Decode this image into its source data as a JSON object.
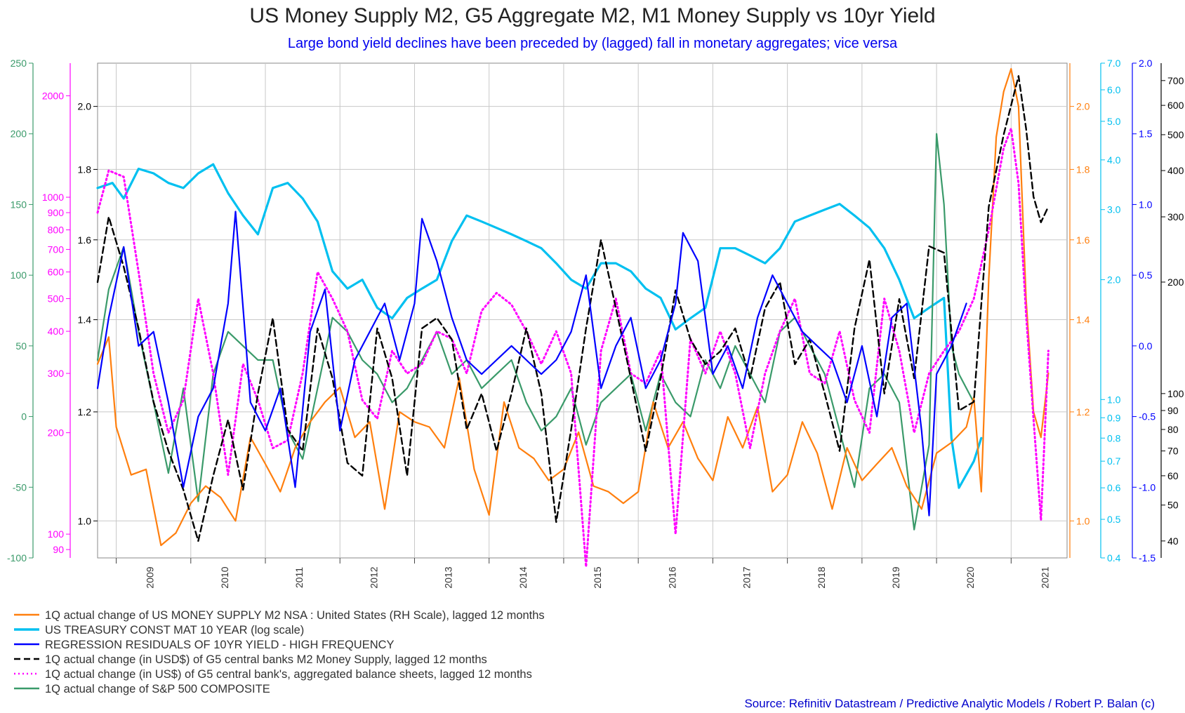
{
  "chart_data": {
    "type": "line",
    "title": "US Money Supply M2, G5 Aggregate M2, M1 Money Supply vs 10yr Yield",
    "subtitle": "Large bond yield declines have been preceded by (lagged) fall in monetary aggregates; vice versa",
    "source": "Source:  Refinitiv Datastream  / Predictive Analytic Models /  Robert P. Balan (c)",
    "x_years": [
      "2009",
      "2010",
      "2011",
      "2012",
      "2013",
      "2014",
      "2015",
      "2016",
      "2017",
      "2018",
      "2019",
      "2020",
      "2021"
    ],
    "x_range": [
      2008.75,
      2021.75
    ],
    "axes": {
      "green": {
        "color": "#3a9a6a",
        "ticks": [
          "250",
          "200",
          "150",
          "100",
          "50",
          "0",
          "-50",
          "-100"
        ],
        "range": [
          -100,
          250
        ]
      },
      "magenta": {
        "color": "#ff00ff",
        "scale": "log",
        "ticks": [
          "2000",
          "1000",
          "900",
          "800",
          "700",
          "600",
          "500",
          "400",
          "300",
          "200",
          "100",
          "90"
        ],
        "range": [
          85,
          2500
        ]
      },
      "black_left": {
        "color": "#000000",
        "scale": "log",
        "ticks": [
          "2.0",
          "1.8",
          "1.6",
          "1.4",
          "1.2",
          "1.0"
        ],
        "range": [
          0.94,
          2.15
        ]
      },
      "orange": {
        "color": "#ff7f0e",
        "scale": "log",
        "ticks": [
          "2.0",
          "1.8",
          "1.6",
          "1.4",
          "1.2",
          "1.0"
        ],
        "range": [
          0.94,
          2.15
        ]
      },
      "cyan": {
        "color": "#00c0f0",
        "scale": "log",
        "ticks": [
          "7.0",
          "6.0",
          "5.0",
          "4.0",
          "3.0",
          "2.0",
          "1.0",
          "0.9",
          "0.8",
          "0.7",
          "0.6",
          "0.5",
          "0.4"
        ],
        "range": [
          0.4,
          7.0
        ]
      },
      "blue": {
        "color": "#0000ff",
        "ticks": [
          "2.0",
          "1.5",
          "1.0",
          "0.5",
          "0.0",
          "-0.5",
          "-1.0",
          "-1.5"
        ],
        "range": [
          -1.5,
          2.0
        ]
      },
      "black_right": {
        "color": "#000000",
        "scale": "log",
        "ticks": [
          "700",
          "600",
          "500",
          "400",
          "300",
          "200",
          "100",
          "90",
          "80",
          "70",
          "60",
          "50",
          "40"
        ],
        "range": [
          36,
          780
        ]
      }
    },
    "series": [
      {
        "name": "1Q actual change of US MONEY SUPPLY M2 NSA : United States (RH Scale), lagged 12 months",
        "color": "#ff7f0e",
        "dash": "solid",
        "axis": "orange",
        "x": [
          2008.75,
          2008.9,
          2009.0,
          2009.2,
          2009.4,
          2009.6,
          2009.8,
          2010.0,
          2010.2,
          2010.4,
          2010.6,
          2010.8,
          2011.0,
          2011.2,
          2011.4,
          2011.6,
          2011.8,
          2012.0,
          2012.2,
          2012.4,
          2012.6,
          2012.8,
          2013.0,
          2013.2,
          2013.4,
          2013.6,
          2013.8,
          2014.0,
          2014.2,
          2014.4,
          2014.6,
          2014.8,
          2015.0,
          2015.2,
          2015.4,
          2015.6,
          2015.8,
          2016.0,
          2016.2,
          2016.4,
          2016.6,
          2016.8,
          2017.0,
          2017.2,
          2017.4,
          2017.6,
          2017.8,
          2018.0,
          2018.2,
          2018.4,
          2018.6,
          2018.8,
          2019.0,
          2019.2,
          2019.4,
          2019.6,
          2019.8,
          2020.0,
          2020.2,
          2020.4,
          2020.5,
          2020.6,
          2020.7,
          2020.8,
          2020.9,
          2021.0,
          2021.1,
          2021.2,
          2021.3,
          2021.4,
          2021.5
        ],
        "values": [
          1.3,
          1.36,
          1.17,
          1.08,
          1.09,
          0.96,
          0.98,
          1.03,
          1.06,
          1.04,
          1.0,
          1.15,
          1.1,
          1.05,
          1.13,
          1.18,
          1.22,
          1.25,
          1.15,
          1.18,
          1.02,
          1.2,
          1.18,
          1.17,
          1.13,
          1.27,
          1.09,
          1.01,
          1.22,
          1.13,
          1.11,
          1.07,
          1.09,
          1.16,
          1.06,
          1.05,
          1.03,
          1.05,
          1.22,
          1.13,
          1.18,
          1.11,
          1.07,
          1.19,
          1.13,
          1.21,
          1.05,
          1.08,
          1.18,
          1.12,
          1.02,
          1.13,
          1.07,
          1.1,
          1.13,
          1.06,
          1.02,
          1.12,
          1.14,
          1.17,
          1.23,
          1.05,
          1.5,
          1.9,
          2.05,
          2.13,
          2.0,
          1.45,
          1.2,
          1.15,
          1.28
        ]
      },
      {
        "name": "US TREASURY CONST MAT 10 YEAR (log scale)",
        "color": "#00c0f0",
        "dash": "solid",
        "axis": "cyan",
        "x": [
          2008.75,
          2008.95,
          2009.1,
          2009.3,
          2009.5,
          2009.7,
          2009.9,
          2010.1,
          2010.3,
          2010.5,
          2010.7,
          2010.9,
          2011.1,
          2011.3,
          2011.5,
          2011.7,
          2011.9,
          2012.1,
          2012.3,
          2012.5,
          2012.7,
          2012.9,
          2013.1,
          2013.3,
          2013.5,
          2013.7,
          2013.9,
          2014.1,
          2014.3,
          2014.5,
          2014.7,
          2014.9,
          2015.1,
          2015.3,
          2015.5,
          2015.7,
          2015.9,
          2016.1,
          2016.3,
          2016.5,
          2016.7,
          2016.9,
          2017.1,
          2017.3,
          2017.5,
          2017.7,
          2017.9,
          2018.1,
          2018.3,
          2018.5,
          2018.7,
          2018.9,
          2019.1,
          2019.3,
          2019.5,
          2019.7,
          2019.9,
          2020.1,
          2020.2,
          2020.3,
          2020.5,
          2020.6
        ],
        "values": [
          3.4,
          3.5,
          3.2,
          3.8,
          3.7,
          3.5,
          3.4,
          3.7,
          3.9,
          3.3,
          2.9,
          2.6,
          3.4,
          3.5,
          3.2,
          2.8,
          2.1,
          1.9,
          2.0,
          1.7,
          1.6,
          1.8,
          1.9,
          2.0,
          2.5,
          2.9,
          2.8,
          2.7,
          2.6,
          2.5,
          2.4,
          2.2,
          2.0,
          1.9,
          2.2,
          2.2,
          2.1,
          1.9,
          1.8,
          1.5,
          1.6,
          1.7,
          2.4,
          2.4,
          2.3,
          2.2,
          2.4,
          2.8,
          2.9,
          3.0,
          3.1,
          2.9,
          2.7,
          2.4,
          2.0,
          1.6,
          1.7,
          1.8,
          0.8,
          0.6,
          0.7,
          0.8
        ]
      },
      {
        "name": "REGRESSION RESIDUALS OF 10YR YIELD - HIGH FREQUENCY",
        "color": "#0000ff",
        "dash": "solid",
        "axis": "blue",
        "x": [
          2008.75,
          2008.9,
          2009.1,
          2009.3,
          2009.5,
          2009.7,
          2009.9,
          2010.1,
          2010.3,
          2010.5,
          2010.6,
          2010.8,
          2011.0,
          2011.2,
          2011.4,
          2011.6,
          2011.8,
          2012.0,
          2012.2,
          2012.4,
          2012.6,
          2012.8,
          2013.0,
          2013.1,
          2013.3,
          2013.5,
          2013.7,
          2013.9,
          2014.1,
          2014.3,
          2014.5,
          2014.7,
          2014.9,
          2015.1,
          2015.3,
          2015.5,
          2015.7,
          2015.9,
          2016.1,
          2016.3,
          2016.5,
          2016.6,
          2016.8,
          2017.0,
          2017.2,
          2017.4,
          2017.6,
          2017.8,
          2018.0,
          2018.2,
          2018.4,
          2018.6,
          2018.8,
          2019.0,
          2019.2,
          2019.4,
          2019.6,
          2019.8,
          2019.9,
          2020.0,
          2020.2,
          2020.4
        ],
        "values": [
          -0.3,
          0.2,
          0.7,
          0.0,
          0.1,
          -0.4,
          -1.0,
          -0.5,
          -0.3,
          0.3,
          0.95,
          -0.4,
          -0.6,
          -0.3,
          -1.0,
          0.1,
          0.4,
          -0.6,
          -0.1,
          0.1,
          0.3,
          -0.1,
          0.3,
          0.9,
          0.6,
          0.2,
          -0.1,
          -0.2,
          -0.1,
          0.0,
          -0.1,
          -0.2,
          -0.1,
          0.1,
          0.5,
          -0.3,
          0.0,
          0.2,
          -0.3,
          -0.1,
          0.3,
          0.8,
          0.6,
          -0.2,
          0.0,
          -0.3,
          0.2,
          0.5,
          0.3,
          0.1,
          0.0,
          -0.1,
          -0.4,
          0.0,
          -0.5,
          0.2,
          0.3,
          -0.6,
          -1.2,
          -0.2,
          0.0,
          0.3
        ]
      },
      {
        "name": "1Q actual change (in USD$) of G5 central banks M2 Money Supply, lagged 12 months",
        "color": "#000000",
        "dash": "dashed",
        "axis": "black_right",
        "x": [
          2008.75,
          2008.9,
          2009.1,
          2009.3,
          2009.5,
          2009.7,
          2009.9,
          2010.1,
          2010.3,
          2010.5,
          2010.7,
          2010.9,
          2011.1,
          2011.3,
          2011.5,
          2011.7,
          2011.9,
          2012.1,
          2012.3,
          2012.5,
          2012.7,
          2012.9,
          2013.1,
          2013.3,
          2013.5,
          2013.7,
          2013.9,
          2014.1,
          2014.3,
          2014.5,
          2014.7,
          2014.9,
          2015.1,
          2015.3,
          2015.5,
          2015.7,
          2015.9,
          2016.1,
          2016.3,
          2016.5,
          2016.7,
          2016.9,
          2017.1,
          2017.3,
          2017.5,
          2017.7,
          2017.9,
          2018.1,
          2018.3,
          2018.5,
          2018.7,
          2018.9,
          2019.1,
          2019.3,
          2019.5,
          2019.7,
          2019.9,
          2020.1,
          2020.3,
          2020.5,
          2020.7,
          2020.9,
          2021.0,
          2021.1,
          2021.2,
          2021.3,
          2021.4,
          2021.5
        ],
        "values": [
          200,
          300,
          220,
          150,
          95,
          70,
          55,
          40,
          60,
          85,
          55,
          100,
          160,
          80,
          70,
          150,
          110,
          65,
          60,
          150,
          110,
          60,
          150,
          160,
          140,
          80,
          100,
          70,
          100,
          150,
          100,
          45,
          80,
          150,
          260,
          170,
          110,
          70,
          110,
          190,
          140,
          120,
          130,
          150,
          110,
          170,
          200,
          120,
          140,
          100,
          70,
          150,
          230,
          100,
          180,
          110,
          250,
          240,
          90,
          95,
          320,
          500,
          600,
          720,
          520,
          340,
          290,
          320
        ]
      },
      {
        "name": "1Q actual change (in US$) of G5 central bank's, aggregated balance sheets, lagged 12 months",
        "color": "#ff00ff",
        "dash": "dotted",
        "axis": "magenta",
        "x": [
          2008.75,
          2008.9,
          2009.1,
          2009.3,
          2009.5,
          2009.7,
          2009.9,
          2010.1,
          2010.3,
          2010.5,
          2010.7,
          2010.9,
          2011.1,
          2011.3,
          2011.5,
          2011.7,
          2011.9,
          2012.1,
          2012.3,
          2012.5,
          2012.7,
          2012.9,
          2013.1,
          2013.3,
          2013.5,
          2013.7,
          2013.9,
          2014.1,
          2014.3,
          2014.5,
          2014.7,
          2014.9,
          2015.1,
          2015.3,
          2015.5,
          2015.7,
          2015.9,
          2016.1,
          2016.3,
          2016.5,
          2016.7,
          2016.9,
          2017.1,
          2017.3,
          2017.5,
          2017.7,
          2017.9,
          2018.1,
          2018.3,
          2018.5,
          2018.7,
          2018.9,
          2019.1,
          2019.3,
          2019.5,
          2019.7,
          2019.9,
          2020.1,
          2020.3,
          2020.5,
          2020.7,
          2020.9,
          2021.0,
          2021.1,
          2021.2,
          2021.3,
          2021.4,
          2021.5
        ],
        "values": [
          900,
          1200,
          1150,
          600,
          300,
          200,
          250,
          500,
          300,
          150,
          320,
          250,
          180,
          190,
          300,
          600,
          500,
          400,
          250,
          220,
          350,
          300,
          320,
          400,
          380,
          300,
          460,
          520,
          480,
          400,
          320,
          400,
          300,
          80,
          350,
          500,
          300,
          280,
          350,
          100,
          380,
          300,
          400,
          300,
          180,
          300,
          400,
          500,
          300,
          280,
          400,
          250,
          200,
          500,
          350,
          200,
          300,
          350,
          400,
          500,
          800,
          1400,
          1600,
          1100,
          450,
          220,
          110,
          350
        ]
      },
      {
        "name": "1Q actual change of S&P 500 COMPOSITE",
        "color": "#3a9a6a",
        "dash": "solid",
        "axis": "green",
        "x": [
          2008.75,
          2008.9,
          2009.1,
          2009.3,
          2009.5,
          2009.7,
          2009.9,
          2010.1,
          2010.3,
          2010.5,
          2010.7,
          2010.9,
          2011.1,
          2011.3,
          2011.5,
          2011.7,
          2011.9,
          2012.1,
          2012.3,
          2012.5,
          2012.7,
          2012.9,
          2013.1,
          2013.3,
          2013.5,
          2013.7,
          2013.9,
          2014.1,
          2014.3,
          2014.5,
          2014.7,
          2014.9,
          2015.1,
          2015.3,
          2015.5,
          2015.7,
          2015.9,
          2016.1,
          2016.3,
          2016.5,
          2016.7,
          2016.9,
          2017.1,
          2017.3,
          2017.5,
          2017.7,
          2017.9,
          2018.1,
          2018.3,
          2018.5,
          2018.7,
          2018.9,
          2019.1,
          2019.3,
          2019.5,
          2019.7,
          2019.9,
          2020.0,
          2020.1,
          2020.2,
          2020.3,
          2020.5
        ],
        "values": [
          40,
          90,
          120,
          60,
          10,
          -40,
          20,
          -60,
          30,
          60,
          50,
          40,
          40,
          -10,
          -30,
          20,
          70,
          60,
          40,
          30,
          10,
          20,
          40,
          60,
          30,
          40,
          20,
          30,
          40,
          10,
          -10,
          0,
          20,
          -20,
          10,
          20,
          30,
          -10,
          30,
          10,
          0,
          40,
          20,
          50,
          30,
          10,
          60,
          70,
          50,
          30,
          -10,
          -50,
          20,
          30,
          10,
          -80,
          -20,
          200,
          150,
          50,
          30,
          10
        ]
      }
    ]
  }
}
